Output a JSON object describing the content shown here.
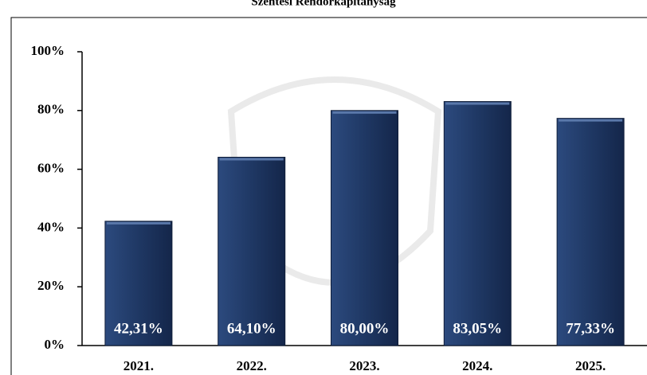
{
  "chart_data": {
    "type": "bar",
    "title": "Szentesi Rendőrkapitányság",
    "categories": [
      "2021.",
      "2022.",
      "2023.",
      "2024.",
      "2025."
    ],
    "values": [
      42.31,
      64.1,
      80.0,
      83.05,
      77.33
    ],
    "value_labels": [
      "42,31%",
      "64,10%",
      "80,00%",
      "83,05%",
      "77,33%"
    ],
    "color": "#1f3864",
    "ylim": [
      0,
      100
    ],
    "yticks": [
      {
        "value": 0,
        "label": "0%"
      },
      {
        "value": 20,
        "label": "20%"
      },
      {
        "value": 40,
        "label": "40%"
      },
      {
        "value": 60,
        "label": "60%"
      },
      {
        "value": 80,
        "label": "80%"
      },
      {
        "value": 100,
        "label": "100%"
      }
    ],
    "grid": false
  }
}
